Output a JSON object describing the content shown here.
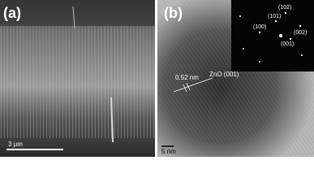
{
  "panels": [
    {
      "label": "(a)",
      "scale_bar": "3 μm"
    },
    {
      "label": "(b)",
      "scale_bar": "5 nm",
      "annotations": [
        "0.52 nm",
        "ZnO (001)"
      ],
      "inset_spots": [
        "(102)",
        "(101)",
        "(100)",
        "(002)",
        "(001)"
      ]
    }
  ]
}
